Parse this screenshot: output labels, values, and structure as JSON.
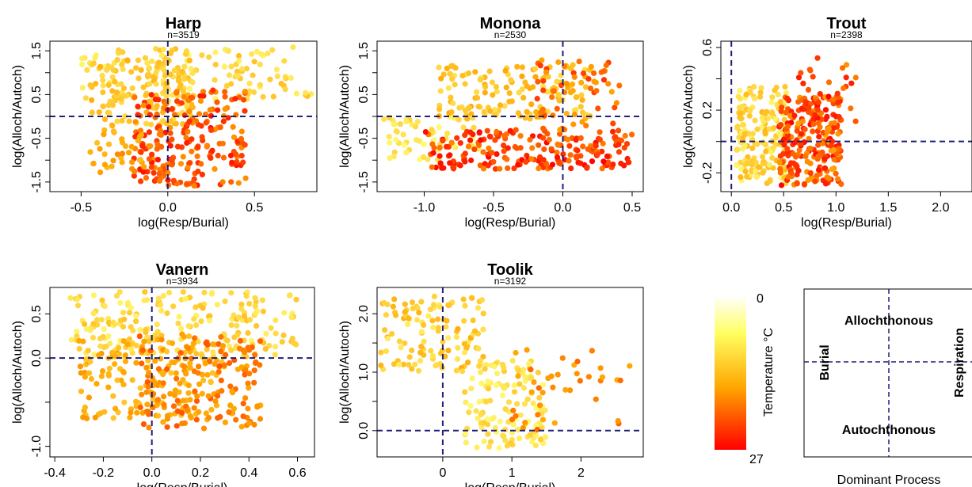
{
  "colors": {
    "guide": "#1f1f7a",
    "hot": "#ff0000",
    "mid": "#ffa500",
    "cold": "#ffff80"
  },
  "chart_data": [
    {
      "type": "scatter",
      "title": "Harp",
      "subtitle": "n=3519",
      "xlabel": "log(Resp/Burial)",
      "ylabel": "log(Alloch/Autoch)",
      "xlim": [
        -0.68,
        0.86
      ],
      "ylim": [
        -1.72,
        1.72
      ],
      "xticks": [
        -0.5,
        0.0,
        0.5
      ],
      "xtick_labels": [
        "-0.5",
        "0.0",
        "0.5"
      ],
      "yticks": [
        -1.5,
        -0.5,
        0.5,
        1.5
      ],
      "ytick_labels": [
        "-1.5",
        "-0.5",
        "0.5",
        "1.5"
      ],
      "minor_yticks": [
        -1.0,
        0.0,
        1.0
      ],
      "vline": 0.0,
      "hline": 0.0,
      "clusters": [
        {
          "x": [
            -0.5,
            0.84
          ],
          "y": [
            0.4,
            1.6
          ],
          "t": [
            0.05,
            0.35
          ],
          "n": 130
        },
        {
          "x": [
            -0.45,
            0.15
          ],
          "y": [
            -0.2,
            1.3
          ],
          "t": [
            0.15,
            0.45
          ],
          "n": 140
        },
        {
          "x": [
            -0.2,
            0.45
          ],
          "y": [
            -1.6,
            0.6
          ],
          "t": [
            0.55,
            0.95
          ],
          "n": 220
        },
        {
          "x": [
            -0.45,
            -0.1
          ],
          "y": [
            -1.3,
            -0.2
          ],
          "t": [
            0.35,
            0.6
          ],
          "n": 40
        }
      ],
      "grid": false,
      "legend": "none"
    },
    {
      "type": "scatter",
      "title": "Monona",
      "subtitle": "n=2530",
      "xlabel": "log(Resp/Burial)",
      "ylabel": "log(Alloch/Autoch)",
      "xlim": [
        -1.34,
        0.58
      ],
      "ylim": [
        -1.72,
        1.72
      ],
      "xticks": [
        -1.0,
        -0.5,
        0.0,
        0.5
      ],
      "xtick_labels": [
        "-1.0",
        "-0.5",
        "0.0",
        "0.5"
      ],
      "yticks": [
        -1.5,
        -0.5,
        0.5,
        1.5
      ],
      "ytick_labels": [
        "-1.5",
        "-0.5",
        "0.5",
        "1.5"
      ],
      "minor_yticks": [
        -1.0,
        0.0,
        1.0
      ],
      "vline": 0.0,
      "hline": 0.0,
      "clusters": [
        {
          "x": [
            -1.3,
            -0.6
          ],
          "y": [
            -1.0,
            0.0
          ],
          "t": [
            0.02,
            0.25
          ],
          "n": 60
        },
        {
          "x": [
            -0.9,
            0.2
          ],
          "y": [
            -0.1,
            1.2
          ],
          "t": [
            0.15,
            0.5
          ],
          "n": 150
        },
        {
          "x": [
            -1.0,
            0.5
          ],
          "y": [
            -1.2,
            -0.3
          ],
          "t": [
            0.6,
            1.0
          ],
          "n": 200
        },
        {
          "x": [
            -0.2,
            0.45
          ],
          "y": [
            -0.6,
            1.4
          ],
          "t": [
            0.5,
            0.85
          ],
          "n": 60
        }
      ],
      "grid": false,
      "legend": "none"
    },
    {
      "type": "scatter",
      "title": "Trout",
      "subtitle": "n=2398",
      "xlabel": "log(Resp/Burial)",
      "ylabel": "log(Alloch/Autoch)",
      "xlim": [
        -0.1,
        2.3
      ],
      "ylim": [
        -0.32,
        0.64
      ],
      "xticks": [
        0.0,
        0.5,
        1.0,
        1.5,
        2.0
      ],
      "xtick_labels": [
        "0.0",
        "0.5",
        "1.0",
        "1.5",
        "2.0"
      ],
      "yticks": [
        -0.2,
        0.2,
        0.6
      ],
      "ytick_labels": [
        "-0.2",
        "0.2",
        "0.6"
      ],
      "minor_yticks": [
        0.0,
        0.4
      ],
      "vline": 0.0,
      "hline": 0.0,
      "clusters": [
        {
          "x": [
            0.05,
            0.55
          ],
          "y": [
            -0.28,
            0.35
          ],
          "t": [
            0.05,
            0.4
          ],
          "n": 180
        },
        {
          "x": [
            0.45,
            1.05
          ],
          "y": [
            -0.28,
            0.3
          ],
          "t": [
            0.5,
            1.0
          ],
          "n": 230
        },
        {
          "x": [
            0.6,
            1.2
          ],
          "y": [
            0.05,
            0.55
          ],
          "t": [
            0.55,
            0.95
          ],
          "n": 40
        }
      ],
      "grid": false,
      "legend": "none"
    },
    {
      "type": "scatter",
      "title": "Vanern",
      "subtitle": "n=3934",
      "xlabel": "log(Resp/Burial)",
      "ylabel": "log(Alloch/Autoch)",
      "xlim": [
        -0.42,
        0.67
      ],
      "ylim": [
        -1.12,
        0.8
      ],
      "xticks": [
        -0.4,
        -0.2,
        0.0,
        0.2,
        0.4,
        0.6
      ],
      "xtick_labels": [
        "-0.4",
        "-0.2",
        "0.0",
        "0.2",
        "0.4",
        "0.6"
      ],
      "yticks": [
        -1.0,
        0.0,
        0.5
      ],
      "ytick_labels": [
        "-1.0",
        "0.0",
        "0.5"
      ],
      "minor_yticks": [
        -0.5
      ],
      "vline": 0.0,
      "hline": 0.0,
      "clusters": [
        {
          "x": [
            -0.35,
            0.6
          ],
          "y": [
            0.0,
            0.75
          ],
          "t": [
            0.05,
            0.35
          ],
          "n": 220
        },
        {
          "x": [
            -0.3,
            0.3
          ],
          "y": [
            -0.7,
            0.2
          ],
          "t": [
            0.3,
            0.55
          ],
          "n": 160
        },
        {
          "x": [
            -0.05,
            0.45
          ],
          "y": [
            -0.8,
            0.3
          ],
          "t": [
            0.45,
            0.75
          ],
          "n": 150
        }
      ],
      "grid": false,
      "legend": "none"
    },
    {
      "type": "scatter",
      "title": "Toolik",
      "subtitle": "n=3192",
      "xlabel": "log(Resp/Burial)",
      "ylabel": "log(Alloch/Autoch)",
      "xlim": [
        -0.95,
        2.9
      ],
      "ylim": [
        -0.45,
        2.45
      ],
      "xticks": [
        0,
        1,
        2
      ],
      "xtick_labels": [
        "0",
        "1",
        "2"
      ],
      "yticks": [
        0.0,
        1.0,
        2.0
      ],
      "ytick_labels": [
        "0.0",
        "1.0",
        "2.0"
      ],
      "minor_yticks": [
        0.5,
        1.5
      ],
      "vline": 0.0,
      "hline": 0.0,
      "clusters": [
        {
          "x": [
            -0.9,
            0.6
          ],
          "y": [
            1.0,
            2.3
          ],
          "t": [
            0.1,
            0.45
          ],
          "n": 120
        },
        {
          "x": [
            0.3,
            1.5
          ],
          "y": [
            -0.3,
            1.2
          ],
          "t": [
            0.02,
            0.3
          ],
          "n": 130
        },
        {
          "x": [
            0.9,
            2.8
          ],
          "y": [
            0.0,
            1.4
          ],
          "t": [
            0.45,
            0.7
          ],
          "n": 40
        }
      ],
      "grid": false,
      "legend": "none"
    }
  ],
  "colorbar": {
    "label": "Temperature °C",
    "min_label": "0",
    "max_label": "27"
  },
  "schematic": {
    "top": "Allochthonous",
    "bottom": "Autochthonous",
    "left": "Burial",
    "right": "Respiration",
    "caption": "Dominant Process"
  }
}
